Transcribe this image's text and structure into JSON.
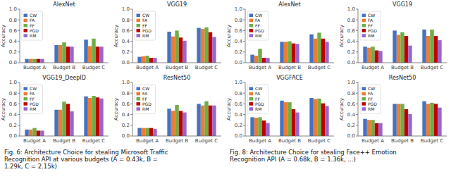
{
  "chart_data": [
    {
      "type": "bar",
      "title": "AlexNet",
      "categories": [
        "Budget A",
        "Budget B",
        "Budget C"
      ],
      "series": [
        {
          "name": "CW",
          "color": "#4472c4",
          "values": [
            0.07,
            0.33,
            0.43
          ]
        },
        {
          "name": "FA",
          "color": "#ed7d31",
          "values": [
            0.07,
            0.33,
            0.31
          ]
        },
        {
          "name": "FF",
          "color": "#70ad47",
          "values": [
            0.07,
            0.38,
            0.45
          ]
        },
        {
          "name": "PGD",
          "color": "#c00000",
          "values": [
            0.07,
            0.3,
            0.3
          ]
        },
        {
          "name": "RM",
          "color": "#9966cc",
          "values": [
            0.07,
            0.3,
            0.3
          ]
        }
      ],
      "y_label": "Accuracy",
      "ylim": [
        0.0,
        1.0
      ],
      "yticks": [
        {
          "value": 0.0,
          "label": "0.0"
        },
        0.2,
        0.4,
        0.6,
        0.8,
        {
          "value": 1.0,
          "label": "1.0"
        }
      ],
      "legend": "upper left"
    },
    {
      "type": "bar",
      "title": "VGG19",
      "categories": [
        "Budget A",
        "Budget B",
        "Budget C"
      ],
      "series": [
        {
          "name": "CW",
          "color": "#4472c4",
          "values": [
            0.11,
            0.58,
            0.65
          ]
        },
        {
          "name": "FA",
          "color": "#ed7d31",
          "values": [
            0.12,
            0.49,
            0.63
          ]
        },
        {
          "name": "FF",
          "color": "#70ad47",
          "values": [
            0.13,
            0.6,
            0.66
          ]
        },
        {
          "name": "PGD",
          "color": "#c00000",
          "values": [
            0.09,
            0.47,
            0.57
          ]
        },
        {
          "name": "RM",
          "color": "#9966cc",
          "values": [
            0.09,
            0.41,
            0.48
          ]
        }
      ],
      "y_label": "Accuracy",
      "ylim": [
        0.0,
        1.0
      ],
      "yticks": [
        {
          "value": 0.0,
          "label": "0.0"
        },
        0.2,
        0.4,
        0.6,
        0.8,
        {
          "value": 1.0,
          "label": "1.0"
        }
      ],
      "legend": "upper left"
    },
    {
      "type": "bar",
      "title": "VGG19_DeepID",
      "categories": [
        "Budget A",
        "Budget B",
        "Budget C"
      ],
      "series": [
        {
          "name": "CW",
          "color": "#4472c4",
          "values": [
            0.12,
            0.49,
            0.74
          ]
        },
        {
          "name": "FA",
          "color": "#ed7d31",
          "values": [
            0.12,
            0.49,
            0.71
          ]
        },
        {
          "name": "FF",
          "color": "#70ad47",
          "values": [
            0.15,
            0.64,
            0.75
          ]
        },
        {
          "name": "PGD",
          "color": "#c00000",
          "values": [
            0.1,
            0.6,
            0.72
          ]
        },
        {
          "name": "RM",
          "color": "#9966cc",
          "values": [
            0.1,
            0.46,
            0.7
          ]
        }
      ],
      "y_label": "Accuracy",
      "ylim": [
        0.0,
        1.0
      ],
      "yticks": [
        {
          "value": 0.0,
          "label": "0.0"
        },
        0.2,
        0.4,
        0.6,
        0.8,
        {
          "value": 1.0,
          "label": "1.0"
        }
      ],
      "legend": "upper left"
    },
    {
      "type": "bar",
      "title": "ResNet50",
      "categories": [
        "Budget A",
        "Budget B",
        "Budget C"
      ],
      "series": [
        {
          "name": "CW",
          "color": "#4472c4",
          "values": [
            0.15,
            0.51,
            0.6
          ]
        },
        {
          "name": "FA",
          "color": "#ed7d31",
          "values": [
            0.15,
            0.47,
            0.57
          ]
        },
        {
          "name": "FF",
          "color": "#70ad47",
          "values": [
            0.15,
            0.58,
            0.65
          ]
        },
        {
          "name": "PGD",
          "color": "#c00000",
          "values": [
            0.15,
            0.47,
            0.57
          ]
        },
        {
          "name": "RM",
          "color": "#9966cc",
          "values": [
            0.13,
            0.44,
            0.57
          ]
        }
      ],
      "y_label": "Accuracy",
      "ylim": [
        0.0,
        1.0
      ],
      "yticks": [
        {
          "value": 0.0,
          "label": "0.0"
        },
        0.2,
        0.4,
        0.6,
        0.8,
        {
          "value": 1.0,
          "label": "1.0"
        }
      ],
      "legend": "upper left"
    },
    {
      "type": "bar",
      "title": "AlexNet",
      "categories": [
        "Budget A",
        "Budget B",
        "Budget C"
      ],
      "series": [
        {
          "name": "CW",
          "color": "#4472c4",
          "values": [
            0.15,
            0.39,
            0.53
          ]
        },
        {
          "name": "FA",
          "color": "#ed7d31",
          "values": [
            0.13,
            0.39,
            0.45
          ]
        },
        {
          "name": "FF",
          "color": "#70ad47",
          "values": [
            0.26,
            0.4,
            0.56
          ]
        },
        {
          "name": "PGD",
          "color": "#c00000",
          "values": [
            0.09,
            0.36,
            0.45
          ]
        },
        {
          "name": "RM",
          "color": "#9966cc",
          "values": [
            0.09,
            0.35,
            0.39
          ]
        }
      ],
      "y_label": "Accuracy",
      "ylim": [
        0.0,
        1.0
      ],
      "yticks": [
        {
          "value": 0.0,
          "label": "0.0"
        },
        0.2,
        0.4,
        0.6,
        0.8,
        {
          "value": 1.0,
          "label": "1.0"
        }
      ],
      "legend": "upper left"
    },
    {
      "type": "bar",
      "title": "VGG19",
      "categories": [
        "Budget A",
        "Budget B",
        "Budget C"
      ],
      "series": [
        {
          "name": "CW",
          "color": "#4472c4",
          "values": [
            0.3,
            0.6,
            0.62
          ]
        },
        {
          "name": "FA",
          "color": "#ed7d31",
          "values": [
            0.28,
            0.52,
            0.5
          ]
        },
        {
          "name": "FF",
          "color": "#70ad47",
          "values": [
            0.3,
            0.57,
            0.62
          ]
        },
        {
          "name": "PGD",
          "color": "#c00000",
          "values": [
            0.23,
            0.5,
            0.5
          ]
        },
        {
          "name": "RM",
          "color": "#9966cc",
          "values": [
            0.22,
            0.32,
            0.42
          ]
        }
      ],
      "y_label": "Accuracy",
      "ylim": [
        0.0,
        1.0
      ],
      "yticks": [
        {
          "value": 0.0,
          "label": "0.0"
        },
        0.2,
        0.4,
        0.6,
        0.8,
        {
          "value": 1.0,
          "label": "1.0"
        }
      ],
      "legend": "upper left"
    },
    {
      "type": "bar",
      "title": "VGGFACE",
      "categories": [
        "Budget A",
        "Budget B",
        "Budget C"
      ],
      "series": [
        {
          "name": "CW",
          "color": "#4472c4",
          "values": [
            0.35,
            0.66,
            0.71
          ]
        },
        {
          "name": "FA",
          "color": "#ed7d31",
          "values": [
            0.34,
            0.63,
            0.69
          ]
        },
        {
          "name": "FF",
          "color": "#70ad47",
          "values": [
            0.35,
            0.63,
            0.7
          ]
        },
        {
          "name": "PGD",
          "color": "#c00000",
          "values": [
            0.29,
            0.5,
            0.61
          ]
        },
        {
          "name": "RM",
          "color": "#9966cc",
          "values": [
            0.24,
            0.44,
            0.56
          ]
        }
      ],
      "y_label": "Accuracy",
      "ylim": [
        0.0,
        1.0
      ],
      "yticks": [
        {
          "value": 0.0,
          "label": "0.0"
        },
        0.2,
        0.4,
        0.6,
        0.8,
        {
          "value": 1.0,
          "label": "1.0"
        }
      ],
      "legend": "upper left"
    },
    {
      "type": "bar",
      "title": "ResNet50",
      "categories": [
        "Budget A",
        "Budget B",
        "Budget C"
      ],
      "series": [
        {
          "name": "CW",
          "color": "#4472c4",
          "values": [
            0.32,
            0.6,
            0.65
          ]
        },
        {
          "name": "FA",
          "color": "#ed7d31",
          "values": [
            0.3,
            0.6,
            0.6
          ]
        },
        {
          "name": "FF",
          "color": "#70ad47",
          "values": [
            0.3,
            0.6,
            0.62
          ]
        },
        {
          "name": "PGD",
          "color": "#c00000",
          "values": [
            0.24,
            0.5,
            0.6
          ]
        },
        {
          "name": "RM",
          "color": "#9966cc",
          "values": [
            0.24,
            0.41,
            0.53
          ]
        }
      ],
      "y_label": "Accuracy",
      "ylim": [
        0.0,
        1.0
      ],
      "yticks": [
        {
          "value": 0.0,
          "label": "0.0"
        },
        0.2,
        0.4,
        0.6,
        0.8,
        {
          "value": 1.0,
          "label": "1.0"
        }
      ],
      "legend": "upper left"
    }
  ],
  "captions": [
    "Fig. 6: Architecture Choice for stealing Microsoft Traffic\nRecognition API at various budgets (A = 0.43k, B =\n1.29k, C = 2.15k)",
    "Fig. 8: Architecture Choice for stealing Face++ Emotion\nRecognition API (A = 0.68k, B = 1.36k, ...)"
  ]
}
